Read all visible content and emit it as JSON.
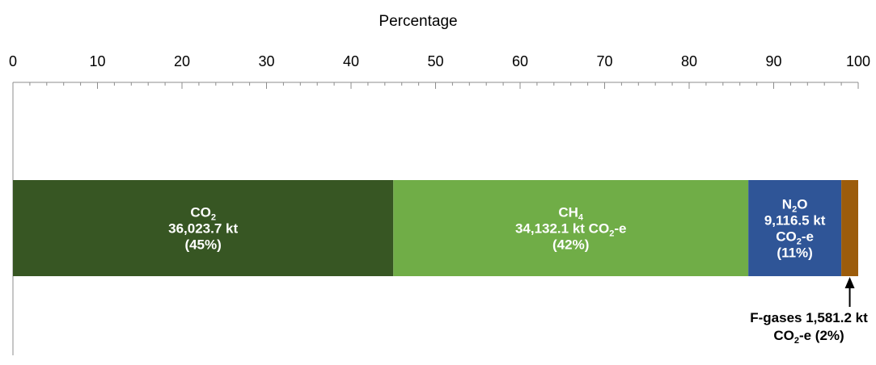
{
  "chart_data": {
    "type": "bar",
    "orientation": "horizontal",
    "stacked": true,
    "xlabel": "Percentage",
    "xlim": [
      0,
      100
    ],
    "x_ticks": [
      "0",
      "10",
      "20",
      "30",
      "40",
      "50",
      "60",
      "70",
      "80",
      "90",
      "100"
    ],
    "axis_position": "top",
    "grid": false,
    "series": [
      {
        "gas": "CO2",
        "value": 45,
        "color": "#375623",
        "label_lines": [
          [
            {
              "t": "CO"
            },
            {
              "t": "2",
              "sub": true
            }
          ],
          [
            {
              "t": "36,023.7 kt"
            }
          ],
          [
            {
              "t": "(45%)"
            }
          ]
        ]
      },
      {
        "gas": "CH4",
        "value": 42,
        "color": "#70ad47",
        "label_lines": [
          [
            {
              "t": "CH"
            },
            {
              "t": "4",
              "sub": true
            }
          ],
          [
            {
              "t": "34,132.1 kt CO"
            },
            {
              "t": "2",
              "sub": true
            },
            {
              "t": "-e"
            }
          ],
          [
            {
              "t": "(42%)"
            }
          ]
        ]
      },
      {
        "gas": "N2O",
        "value": 11,
        "color": "#2f5597",
        "label_lines": [
          [
            {
              "t": "N"
            },
            {
              "t": "2",
              "sub": true
            },
            {
              "t": "O"
            }
          ],
          [
            {
              "t": "9,116.5 kt"
            }
          ],
          [
            {
              "t": "CO"
            },
            {
              "t": "2",
              "sub": true
            },
            {
              "t": "-e"
            }
          ],
          [
            {
              "t": "(11%)"
            }
          ]
        ]
      },
      {
        "gas": "F-gases",
        "value": 2,
        "color": "#9c5c0b",
        "callout": true,
        "label_lines": [
          [
            {
              "t": "F-gases 1,581.2 kt"
            }
          ],
          [
            {
              "t": "CO"
            },
            {
              "t": "2",
              "sub": true
            },
            {
              "t": "-e (2%)"
            }
          ]
        ]
      }
    ]
  }
}
